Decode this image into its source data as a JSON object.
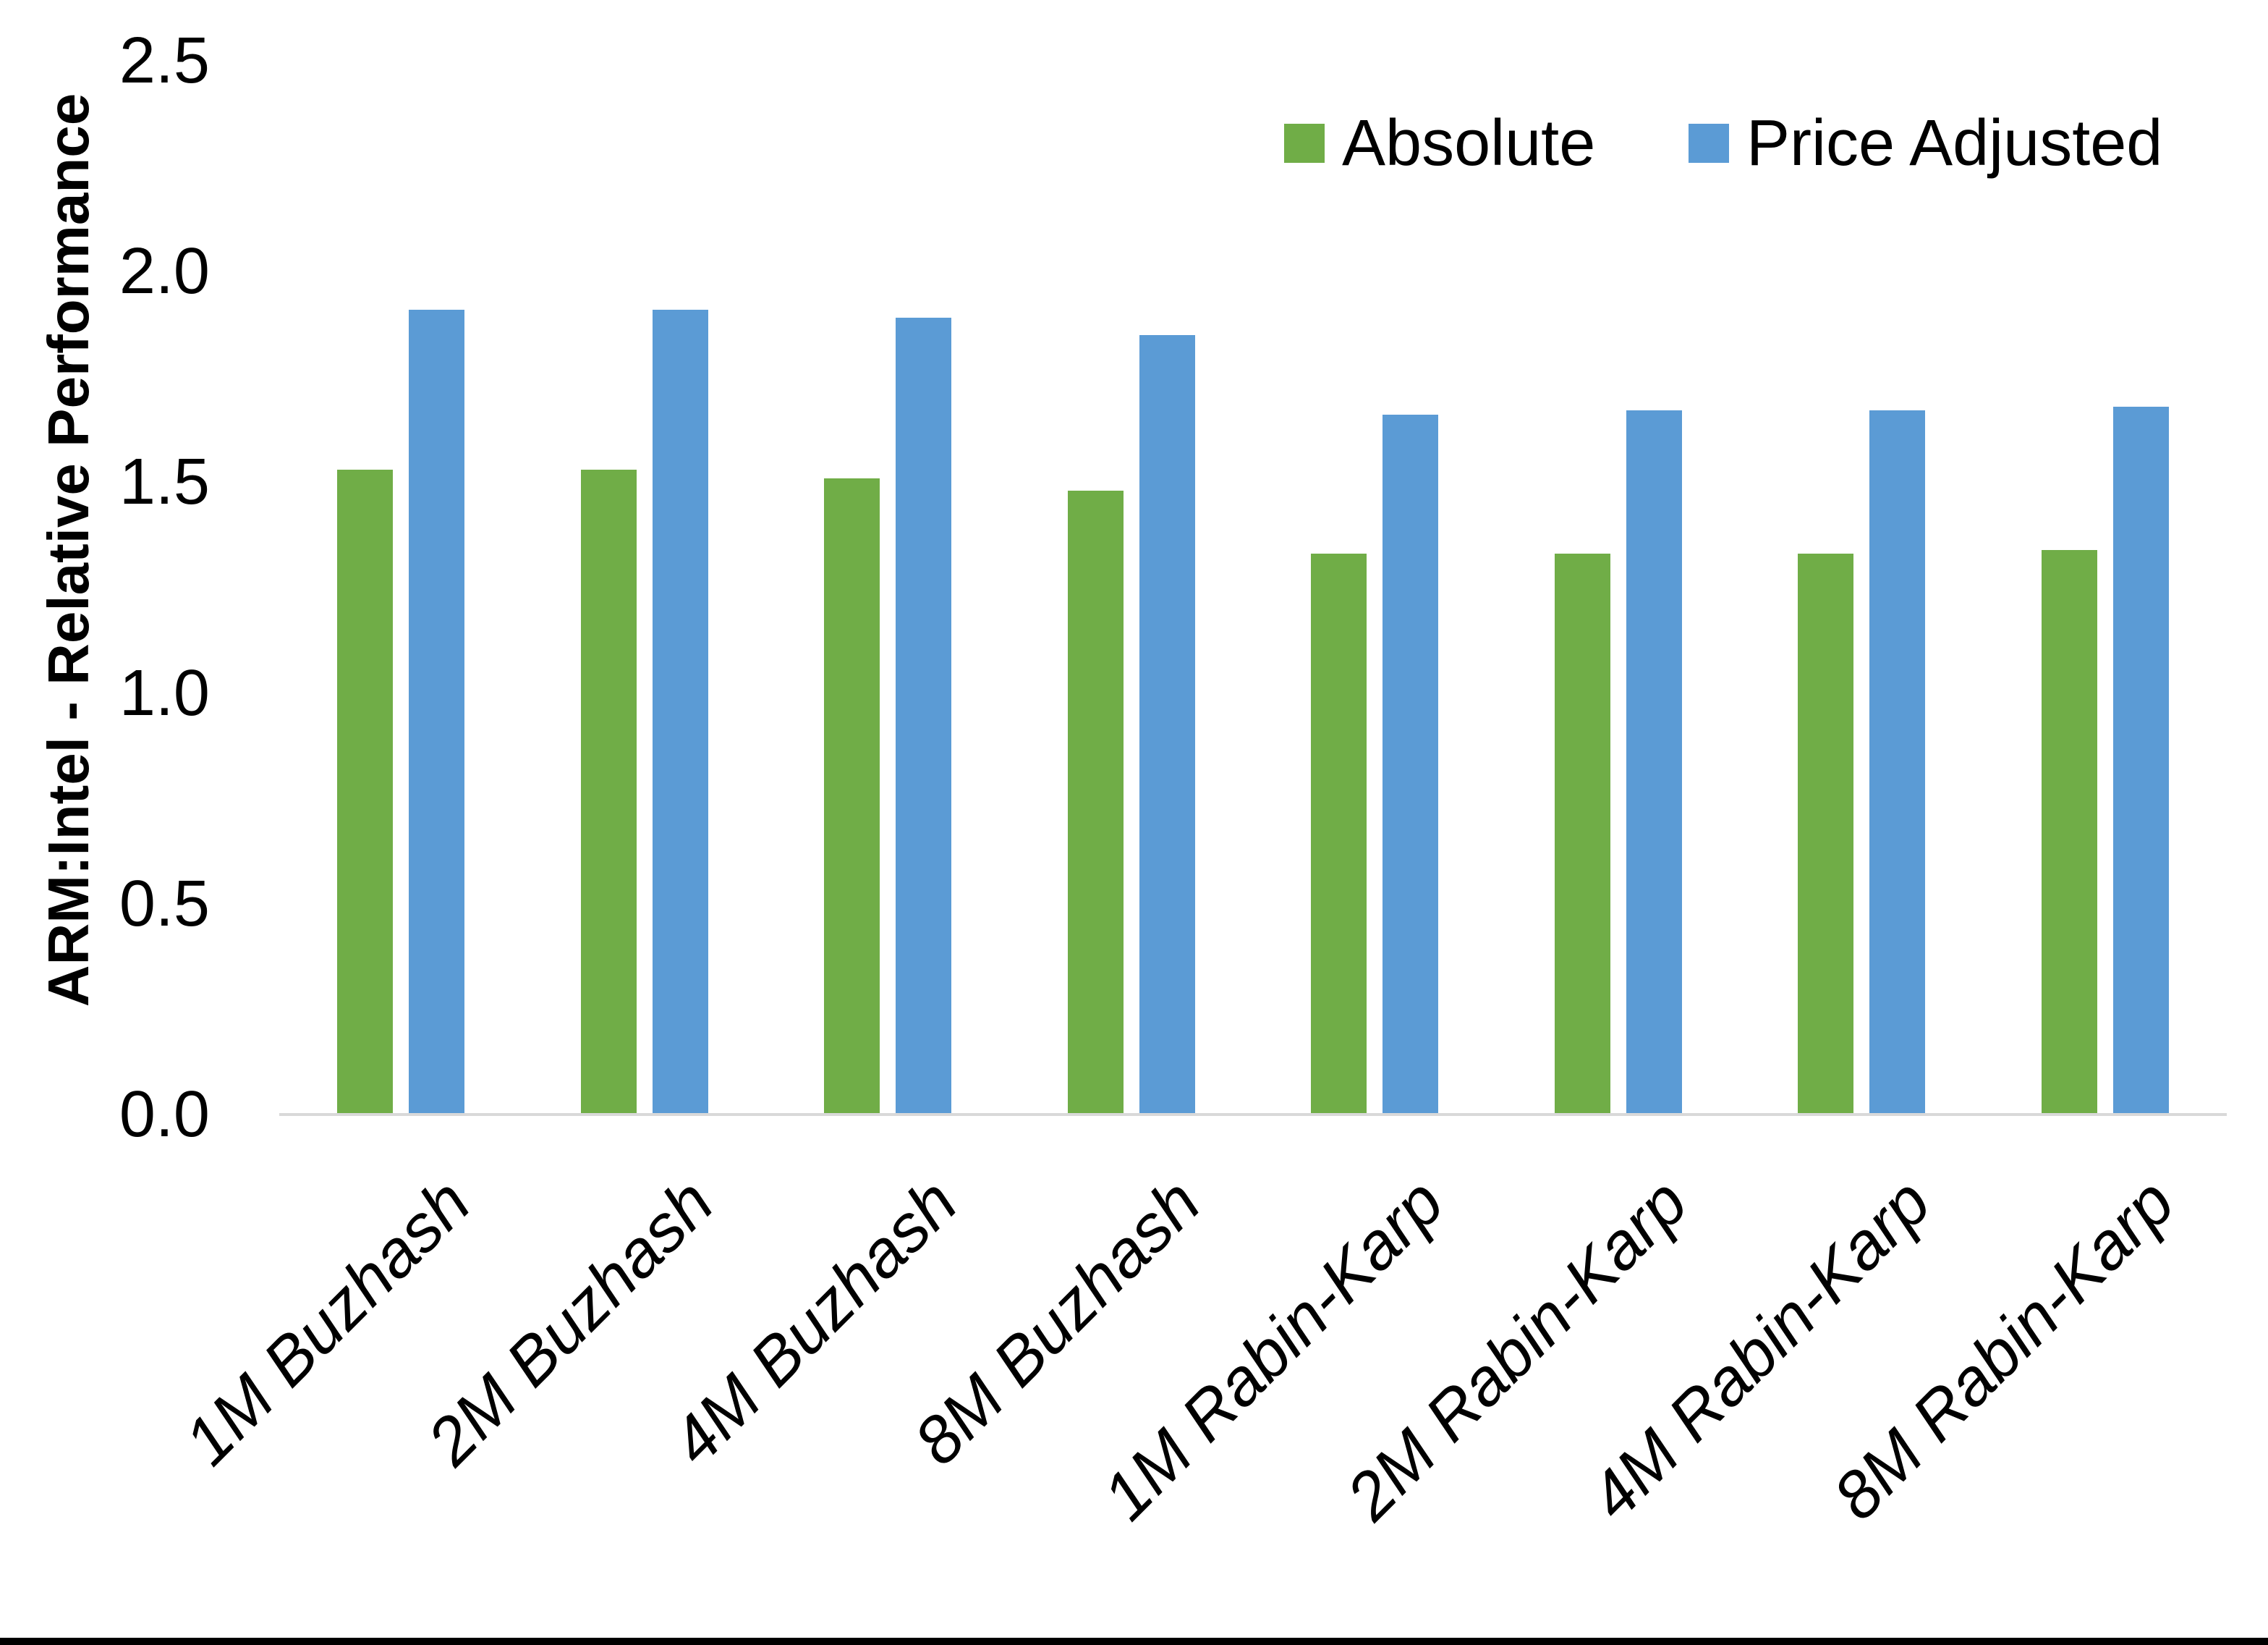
{
  "chart_data": {
    "type": "bar",
    "title": "",
    "xlabel": "",
    "ylabel": "ARM:Intel - Relative Performance",
    "ylim": [
      0.0,
      2.5
    ],
    "ytick_step": 0.5,
    "ytick_labels": [
      "0.0",
      "0.5",
      "1.0",
      "1.5",
      "2.0",
      "2.5"
    ],
    "grid": false,
    "legend_position": "top-right",
    "categories": [
      "1M Buzhash",
      "2M Buzhash",
      "4M Buzhash",
      "8M Buzhash",
      "1M Rabin-Karp",
      "2M Rabin-Karp",
      "4M Rabin-Karp",
      "8M Rabin-Karp"
    ],
    "series": [
      {
        "name": "Absolute",
        "color": "#70AD47",
        "values": [
          1.53,
          1.53,
          1.51,
          1.48,
          1.33,
          1.33,
          1.33,
          1.34
        ]
      },
      {
        "name": "Price Adjusted",
        "color": "#5B9BD5",
        "values": [
          1.91,
          1.91,
          1.89,
          1.85,
          1.66,
          1.67,
          1.67,
          1.68
        ]
      }
    ],
    "colors": {
      "background": "#FFFFFF",
      "axis_line": "#D9D9D9",
      "text": "#000000",
      "bottom_border": "#000000"
    }
  }
}
